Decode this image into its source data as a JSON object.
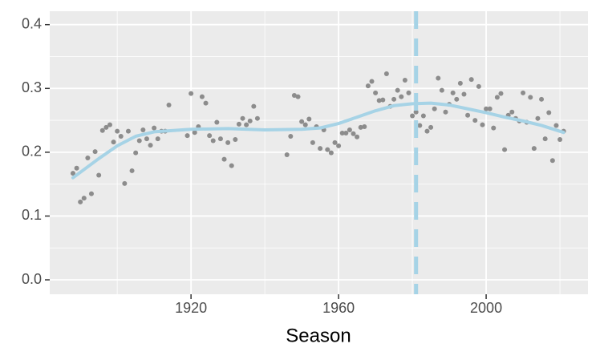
{
  "chart_data": {
    "type": "scatter",
    "x_label": "Season",
    "xlim": [
      1881.7,
      2027.6
    ],
    "ylim": [
      -0.0226,
      0.421
    ],
    "xticks": [
      1920,
      1960,
      2000
    ],
    "yticks": [
      {
        "value": 0,
        "label": "0.0"
      },
      0.1,
      0.2,
      0.3,
      0.4
    ],
    "x_minor_grid": [
      1900,
      1940,
      1980,
      2020
    ],
    "y_minor_grid": [
      0.05,
      0.15,
      0.25,
      0.35
    ],
    "grid": true,
    "points": {
      "color": "#8c8c8c",
      "x": [
        1888,
        1889,
        1890,
        1891,
        1892,
        1893,
        1894,
        1895,
        1896,
        1897,
        1898,
        1899,
        1900,
        1901,
        1902,
        1903,
        1904,
        1905,
        1906,
        1907,
        1908,
        1909,
        1910,
        1911,
        1912,
        1913,
        1914,
        1919,
        1920,
        1921,
        1922,
        1923,
        1924,
        1925,
        1926,
        1927,
        1928,
        1929,
        1930,
        1931,
        1932,
        1933,
        1934,
        1935,
        1936,
        1937,
        1938,
        1946,
        1947,
        1948,
        1949,
        1950,
        1951,
        1952,
        1953,
        1954,
        1955,
        1956,
        1957,
        1958,
        1959,
        1960,
        1961,
        1962,
        1963,
        1964,
        1965,
        1966,
        1967,
        1968,
        1969,
        1970,
        1971,
        1972,
        1973,
        1974,
        1975,
        1976,
        1977,
        1978,
        1979,
        1980,
        1981,
        1982,
        1983,
        1984,
        1985,
        1986,
        1987,
        1988,
        1989,
        1990,
        1991,
        1992,
        1993,
        1994,
        1995,
        1996,
        1997,
        1998,
        1999,
        2000,
        2001,
        2002,
        2003,
        2004,
        2005,
        2006,
        2007,
        2008,
        2009,
        2010,
        2011,
        2012,
        2013,
        2014,
        2015,
        2016,
        2017,
        2018,
        2019,
        2020,
        2021
      ],
      "y": [
        0.167,
        0.175,
        0.122,
        0.128,
        0.191,
        0.135,
        0.201,
        0.164,
        0.234,
        0.239,
        0.243,
        0.216,
        0.233,
        0.225,
        0.151,
        0.233,
        0.171,
        0.199,
        0.218,
        0.235,
        0.221,
        0.211,
        0.238,
        0.221,
        0.233,
        0.233,
        0.274,
        0.226,
        0.292,
        0.231,
        0.24,
        0.287,
        0.277,
        0.226,
        0.218,
        0.247,
        0.221,
        0.189,
        0.215,
        0.179,
        0.22,
        0.244,
        0.253,
        0.243,
        0.249,
        0.272,
        0.253,
        0.196,
        0.225,
        0.289,
        0.287,
        0.248,
        0.243,
        0.252,
        0.215,
        0.24,
        0.206,
        0.235,
        0.204,
        0.199,
        0.215,
        0.21,
        0.23,
        0.23,
        0.235,
        0.229,
        0.224,
        0.239,
        0.24,
        0.304,
        0.311,
        0.293,
        0.281,
        0.282,
        0.323,
        0.272,
        0.283,
        0.297,
        0.287,
        0.313,
        0.293,
        0.257,
        0.263,
        0.242,
        0.257,
        0.233,
        0.239,
        0.268,
        0.316,
        0.297,
        0.263,
        0.275,
        0.293,
        0.283,
        0.308,
        0.291,
        0.258,
        0.314,
        0.25,
        0.303,
        0.243,
        0.268,
        0.268,
        0.238,
        0.286,
        0.292,
        0.204,
        0.258,
        0.263,
        0.253,
        0.249,
        0.293,
        0.247,
        0.286,
        0.206,
        0.253,
        0.283,
        0.221,
        0.262,
        0.187,
        0.242,
        0.22,
        0.233
      ]
    },
    "smooth": {
      "color": "#a6d3e6",
      "x": [
        1888,
        1895,
        1900,
        1905,
        1910,
        1920,
        1930,
        1940,
        1950,
        1955,
        1960,
        1965,
        1970,
        1975,
        1980,
        1985,
        1990,
        1995,
        2000,
        2005,
        2010,
        2015,
        2021
      ],
      "y": [
        0.16,
        0.19,
        0.21,
        0.225,
        0.232,
        0.236,
        0.237,
        0.235,
        0.236,
        0.238,
        0.245,
        0.255,
        0.265,
        0.273,
        0.276,
        0.277,
        0.274,
        0.268,
        0.262,
        0.255,
        0.249,
        0.242,
        0.231
      ]
    },
    "vline": 1981,
    "vline_color": "#a6d3e6"
  }
}
